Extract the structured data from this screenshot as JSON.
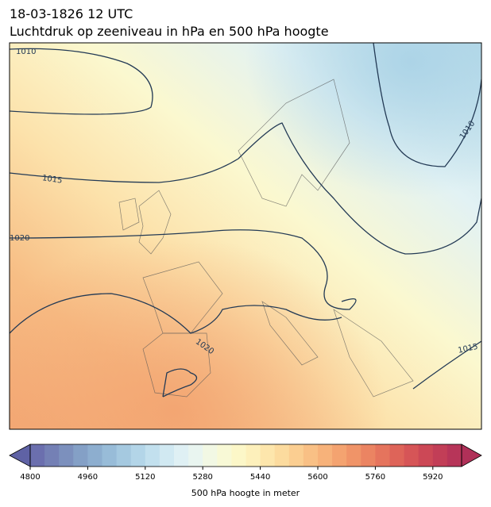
{
  "header": {
    "date_line": "18-03-1826 12 UTC",
    "title": "Luchtdruk op zeeniveau in hPa en 500 hPa hoogte"
  },
  "map": {
    "isobar_labels": [
      "1010",
      "1010",
      "1015",
      "1020",
      "1020",
      "1015"
    ]
  },
  "colorbar": {
    "label": "500 hPa hoogte in meter",
    "clim": [
      4800,
      6000
    ],
    "ticks": [
      4800,
      4960,
      5120,
      5280,
      5440,
      5600,
      5760,
      5920
    ],
    "under_color": "#5f62a5",
    "over_color": "#b03058",
    "colors": [
      "#6b6fae",
      "#7480b5",
      "#7c90bd",
      "#84a0c6",
      "#8daecf",
      "#98bcd8",
      "#a5c9e0",
      "#b3d5e8",
      "#c2e0ee",
      "#d1e9f2",
      "#dff0f4",
      "#e9f5f0",
      "#f2f8e4",
      "#f8f9d6",
      "#fcf7c8",
      "#fdf0bb",
      "#fde6ac",
      "#fcdb9e",
      "#fbce91",
      "#f9c085",
      "#f7b27a",
      "#f4a370",
      "#f09468",
      "#eb8462",
      "#e5745d",
      "#de6459",
      "#d65557",
      "#cc4856",
      "#c23e57",
      "#b73559"
    ]
  }
}
